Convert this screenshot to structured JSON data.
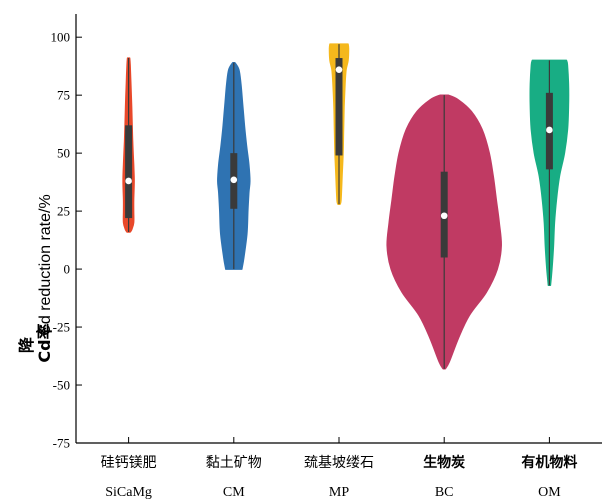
{
  "chart_data": {
    "type": "violin",
    "ylabel_cn": "降",
    "ylabel_overlap": "Cd率",
    "ylabel": "Cd reduction rate/%",
    "ylim": [
      -75,
      110
    ],
    "yticks": [
      100,
      75,
      50,
      25,
      0,
      -25,
      -50,
      -75
    ],
    "ytick_labels": [
      "100",
      "75",
      "50",
      "25",
      "0",
      "-25",
      "-50",
      "-75"
    ],
    "grid": false,
    "categories": [
      {
        "cn": "硅钙镁肥",
        "en": "SiCaMg",
        "bold": false,
        "color": "#e8482a",
        "min": 16,
        "max": 91,
        "q1": 22,
        "q3": 62,
        "median": 38,
        "profile": [
          [
            16,
            1.5
          ],
          [
            17,
            3
          ],
          [
            20,
            5
          ],
          [
            25,
            5
          ],
          [
            30,
            5
          ],
          [
            38,
            5.5
          ],
          [
            45,
            5
          ],
          [
            55,
            4
          ],
          [
            62,
            3.5
          ],
          [
            70,
            3
          ],
          [
            80,
            2.2
          ],
          [
            88,
            1.5
          ],
          [
            91,
            1
          ]
        ]
      },
      {
        "cn": "黏土矿物",
        "en": "CM",
        "bold": false,
        "color": "#2f73b2",
        "min": 0,
        "max": 89,
        "q1": 26,
        "q3": 50,
        "median": 38.5,
        "profile": [
          [
            0,
            8
          ],
          [
            5,
            10
          ],
          [
            15,
            13
          ],
          [
            25,
            14
          ],
          [
            33,
            15
          ],
          [
            38,
            16
          ],
          [
            45,
            15
          ],
          [
            52,
            13
          ],
          [
            60,
            11
          ],
          [
            70,
            9
          ],
          [
            80,
            7
          ],
          [
            86,
            5
          ],
          [
            89,
            1
          ]
        ]
      },
      {
        "cn": "巯基坡缕石",
        "en": "MP",
        "bold": false,
        "color": "#f5b81c",
        "min": 28,
        "max": 97,
        "q1": 49,
        "q3": 91,
        "median": 86,
        "profile": [
          [
            28,
            1
          ],
          [
            30,
            2
          ],
          [
            40,
            3
          ],
          [
            50,
            4
          ],
          [
            60,
            4.5
          ],
          [
            70,
            5
          ],
          [
            80,
            6
          ],
          [
            86,
            7
          ],
          [
            90,
            9
          ],
          [
            95,
            9.5
          ],
          [
            97,
            9
          ]
        ]
      },
      {
        "cn": "生物炭",
        "en": "BC",
        "bold": true,
        "color": "#c03a63",
        "min": -43,
        "max": 75,
        "q1": 5,
        "q3": 42,
        "median": 23,
        "profile": [
          [
            -43,
            1
          ],
          [
            -40,
            5
          ],
          [
            -30,
            14
          ],
          [
            -20,
            25
          ],
          [
            -10,
            42
          ],
          [
            0,
            53
          ],
          [
            10,
            57
          ],
          [
            20,
            55
          ],
          [
            30,
            52
          ],
          [
            40,
            49
          ],
          [
            50,
            45
          ],
          [
            60,
            38
          ],
          [
            68,
            27
          ],
          [
            73,
            14
          ],
          [
            75,
            4
          ]
        ]
      },
      {
        "cn": "有机物料",
        "en": "OM",
        "bold": true,
        "color": "#18ad84",
        "min": -7,
        "max": 90,
        "q1": 43,
        "q3": 76,
        "median": 60,
        "profile": [
          [
            -7,
            1
          ],
          [
            0,
            2.5
          ],
          [
            10,
            4
          ],
          [
            20,
            5
          ],
          [
            30,
            7
          ],
          [
            40,
            10
          ],
          [
            50,
            15
          ],
          [
            60,
            18
          ],
          [
            70,
            19
          ],
          [
            80,
            19
          ],
          [
            88,
            18
          ],
          [
            90,
            17
          ]
        ]
      }
    ]
  }
}
